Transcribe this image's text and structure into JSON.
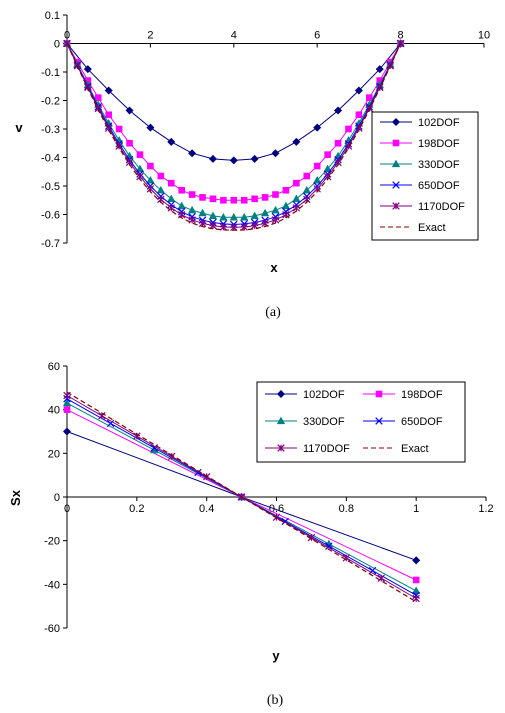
{
  "chart_data": [
    {
      "type": "line",
      "caption": "(a)",
      "xlabel": "x",
      "ylabel": "v",
      "xlim": [
        0,
        10
      ],
      "ylim": [
        -0.7,
        0.1
      ],
      "xticks": [
        0,
        2,
        4,
        6,
        8,
        10
      ],
      "yticks": [
        0.1,
        0,
        -0.1,
        -0.2,
        -0.3,
        -0.4,
        -0.5,
        -0.6,
        -0.7
      ],
      "grid": false,
      "legend_position": "right",
      "series": [
        {
          "name": "102DOF",
          "color": "#000080",
          "marker": "diamond",
          "x": [
            0,
            0.5,
            1,
            1.5,
            2,
            2.5,
            3,
            3.5,
            4,
            4.5,
            5,
            5.5,
            6,
            6.5,
            7,
            7.5,
            8
          ],
          "y": [
            0,
            -0.09,
            -0.165,
            -0.235,
            -0.295,
            -0.345,
            -0.385,
            -0.405,
            -0.41,
            -0.405,
            -0.385,
            -0.345,
            -0.295,
            -0.235,
            -0.165,
            -0.09,
            0
          ]
        },
        {
          "name": "198DOF",
          "color": "#FF00FF",
          "marker": "square",
          "x": [
            0,
            0.25,
            0.5,
            0.75,
            1,
            1.25,
            1.5,
            1.75,
            2,
            2.25,
            2.5,
            2.75,
            3,
            3.25,
            3.5,
            3.75,
            4,
            4.25,
            4.5,
            4.75,
            5,
            5.25,
            5.5,
            5.75,
            6,
            6.25,
            6.5,
            6.75,
            7,
            7.25,
            7.5,
            7.75,
            8
          ],
          "y": [
            0,
            -0.065,
            -0.13,
            -0.19,
            -0.25,
            -0.3,
            -0.35,
            -0.39,
            -0.43,
            -0.465,
            -0.49,
            -0.515,
            -0.53,
            -0.54,
            -0.545,
            -0.55,
            -0.55,
            -0.55,
            -0.545,
            -0.54,
            -0.53,
            -0.515,
            -0.49,
            -0.465,
            -0.43,
            -0.39,
            -0.35,
            -0.3,
            -0.25,
            -0.19,
            -0.13,
            -0.065,
            0
          ]
        },
        {
          "name": "330DOF",
          "color": "#008080",
          "marker": "triangle",
          "x": [
            0,
            0.25,
            0.5,
            0.75,
            1,
            1.25,
            1.5,
            1.75,
            2,
            2.25,
            2.5,
            2.75,
            3,
            3.25,
            3.5,
            3.75,
            4,
            4.25,
            4.5,
            4.75,
            5,
            5.25,
            5.5,
            5.75,
            6,
            6.25,
            6.5,
            6.75,
            7,
            7.25,
            7.5,
            7.75,
            8
          ],
          "y": [
            0,
            -0.073,
            -0.145,
            -0.215,
            -0.28,
            -0.34,
            -0.395,
            -0.44,
            -0.48,
            -0.515,
            -0.545,
            -0.57,
            -0.585,
            -0.595,
            -0.605,
            -0.61,
            -0.61,
            -0.61,
            -0.605,
            -0.595,
            -0.585,
            -0.57,
            -0.545,
            -0.515,
            -0.48,
            -0.44,
            -0.395,
            -0.34,
            -0.28,
            -0.215,
            -0.145,
            -0.073,
            0
          ]
        },
        {
          "name": "650DOF",
          "color": "#0000FF",
          "marker": "x",
          "x": [
            0,
            0.25,
            0.5,
            0.75,
            1,
            1.25,
            1.5,
            1.75,
            2,
            2.25,
            2.5,
            2.75,
            3,
            3.25,
            3.5,
            3.75,
            4,
            4.25,
            4.5,
            4.75,
            5,
            5.25,
            5.5,
            5.75,
            6,
            6.25,
            6.5,
            6.75,
            7,
            7.25,
            7.5,
            7.75,
            8
          ],
          "y": [
            0,
            -0.076,
            -0.15,
            -0.222,
            -0.29,
            -0.352,
            -0.408,
            -0.458,
            -0.5,
            -0.536,
            -0.566,
            -0.59,
            -0.608,
            -0.62,
            -0.628,
            -0.633,
            -0.635,
            -0.633,
            -0.628,
            -0.62,
            -0.608,
            -0.59,
            -0.566,
            -0.536,
            -0.5,
            -0.458,
            -0.408,
            -0.352,
            -0.29,
            -0.222,
            -0.15,
            -0.076,
            0
          ]
        },
        {
          "name": "1170DOF",
          "color": "#800080",
          "marker": "star",
          "x": [
            0,
            0.25,
            0.5,
            0.75,
            1,
            1.25,
            1.5,
            1.75,
            2,
            2.25,
            2.5,
            2.75,
            3,
            3.25,
            3.5,
            3.75,
            4,
            4.25,
            4.5,
            4.75,
            5,
            5.25,
            5.5,
            5.75,
            6,
            6.25,
            6.5,
            6.75,
            7,
            7.25,
            7.5,
            7.75,
            8
          ],
          "y": [
            0,
            -0.078,
            -0.154,
            -0.228,
            -0.297,
            -0.36,
            -0.417,
            -0.467,
            -0.51,
            -0.547,
            -0.577,
            -0.601,
            -0.619,
            -0.631,
            -0.639,
            -0.644,
            -0.645,
            -0.644,
            -0.639,
            -0.631,
            -0.619,
            -0.601,
            -0.577,
            -0.547,
            -0.51,
            -0.467,
            -0.417,
            -0.36,
            -0.297,
            -0.228,
            -0.154,
            -0.078,
            0
          ]
        },
        {
          "name": "Exact",
          "color": "#800000",
          "marker": "none",
          "dash": true,
          "x": [
            0,
            0.25,
            0.5,
            0.75,
            1,
            1.25,
            1.5,
            1.75,
            2,
            2.25,
            2.5,
            2.75,
            3,
            3.25,
            3.5,
            3.75,
            4,
            4.25,
            4.5,
            4.75,
            5,
            5.25,
            5.5,
            5.75,
            6,
            6.25,
            6.5,
            6.75,
            7,
            7.25,
            7.5,
            7.75,
            8
          ],
          "y": [
            0,
            -0.08,
            -0.158,
            -0.233,
            -0.303,
            -0.367,
            -0.425,
            -0.476,
            -0.52,
            -0.557,
            -0.588,
            -0.612,
            -0.63,
            -0.642,
            -0.65,
            -0.654,
            -0.655,
            -0.654,
            -0.65,
            -0.642,
            -0.63,
            -0.612,
            -0.588,
            -0.557,
            -0.52,
            -0.476,
            -0.425,
            -0.367,
            -0.303,
            -0.233,
            -0.158,
            -0.08,
            0
          ]
        }
      ]
    },
    {
      "type": "line",
      "caption": "(b)",
      "xlabel": "y",
      "ylabel": "Sx",
      "xlim": [
        0,
        1.2
      ],
      "ylim": [
        -60,
        60
      ],
      "xticks": [
        0,
        0.2,
        0.4,
        0.6,
        0.8,
        1,
        1.2
      ],
      "yticks": [
        60,
        40,
        20,
        0,
        -20,
        -40,
        -60
      ],
      "grid": false,
      "legend_position": "top-right",
      "series": [
        {
          "name": "102DOF",
          "color": "#000080",
          "marker": "diamond",
          "x": [
            0,
            0.5,
            1
          ],
          "y": [
            30,
            0,
            -29
          ]
        },
        {
          "name": "198DOF",
          "color": "#FF00FF",
          "marker": "square",
          "x": [
            0,
            0.5,
            1
          ],
          "y": [
            40,
            0,
            -38
          ]
        },
        {
          "name": "330DOF",
          "color": "#008080",
          "marker": "triangle",
          "x": [
            0,
            0.25,
            0.5,
            0.75,
            1
          ],
          "y": [
            43,
            21.5,
            0,
            -21.5,
            -43
          ]
        },
        {
          "name": "650DOF",
          "color": "#0000FF",
          "marker": "x",
          "x": [
            0,
            0.125,
            0.25,
            0.375,
            0.5,
            0.625,
            0.75,
            0.875,
            1
          ],
          "y": [
            45,
            33.7,
            22.5,
            11.2,
            0,
            -11.2,
            -22.5,
            -33.7,
            -45
          ]
        },
        {
          "name": "1170DOF",
          "color": "#800080",
          "marker": "star",
          "x": [
            0,
            0.1,
            0.2,
            0.3,
            0.4,
            0.5,
            0.6,
            0.7,
            0.8,
            0.9,
            1
          ],
          "y": [
            46.5,
            37.2,
            27.9,
            18.6,
            9.3,
            0,
            -9.3,
            -18.6,
            -27.9,
            -37.2,
            -46.5
          ]
        },
        {
          "name": "Exact",
          "color": "#800000",
          "marker": "none",
          "dash": true,
          "x": [
            0,
            1
          ],
          "y": [
            48,
            -48
          ]
        }
      ]
    }
  ]
}
